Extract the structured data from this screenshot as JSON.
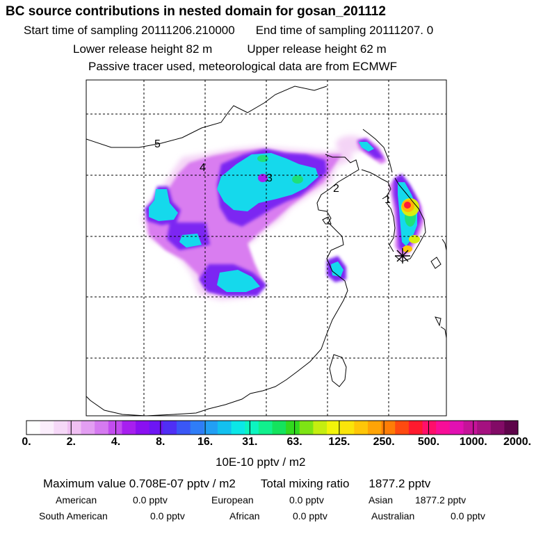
{
  "header": {
    "title": "BC  source contributions in nested domain for gosan_201112",
    "start_label": "Start time of sampling 20111206.210000",
    "end_label": "End time of sampling 20111207.     0",
    "lower_label": "Lower release height   82 m",
    "upper_label": "Upper release height   62 m",
    "tracer_note": "Passive tracer used, meteorological data are from ECMWF"
  },
  "map": {
    "region_labels": [
      "1",
      "2",
      "3",
      "4",
      "5"
    ],
    "station_marker": "star-icon"
  },
  "colorbar": {
    "ticks": [
      "0.",
      "2.",
      "4.",
      "8.",
      "16.",
      "31.",
      "63.",
      "125.",
      "250.",
      "500.",
      "1000.",
      "2000."
    ],
    "unit": "10E-10 pptv / m2",
    "colors": [
      "#ffffff",
      "#fbeefc",
      "#f6d8f8",
      "#f0c0f3",
      "#e39ef2",
      "#d57af0",
      "#c24cef",
      "#a71fef",
      "#8a10f1",
      "#6d16f4",
      "#4f2ff5",
      "#3a57f6",
      "#2f7df7",
      "#229ff4",
      "#13c0ef",
      "#0be7e7",
      "#0cf5c0",
      "#11f08d",
      "#14e35d",
      "#31d91e",
      "#7ee414",
      "#c5ee10",
      "#f2f40a",
      "#fae40a",
      "#ffc608",
      "#ffa406",
      "#ff7d06",
      "#ff4a10",
      "#ff1a2e",
      "#ff0f6a",
      "#f80e98",
      "#e110b2",
      "#c51399",
      "#a51180",
      "#820b66",
      "#5e044a"
    ]
  },
  "summary": {
    "max_label": "Maximum value  0.708E-07 pptv / m2",
    "total_label": "Total mixing ratio",
    "total_value": "1877.2 pptv",
    "rows": [
      [
        [
          "American",
          "0.0 pptv"
        ],
        [
          "European",
          "0.0 pptv"
        ],
        [
          "Asian",
          "1877.2 pptv"
        ]
      ],
      [
        [
          "South American",
          "0.0 pptv"
        ],
        [
          "African",
          "0.0 pptv"
        ],
        [
          "Australian",
          "0.0 pptv"
        ]
      ]
    ]
  }
}
